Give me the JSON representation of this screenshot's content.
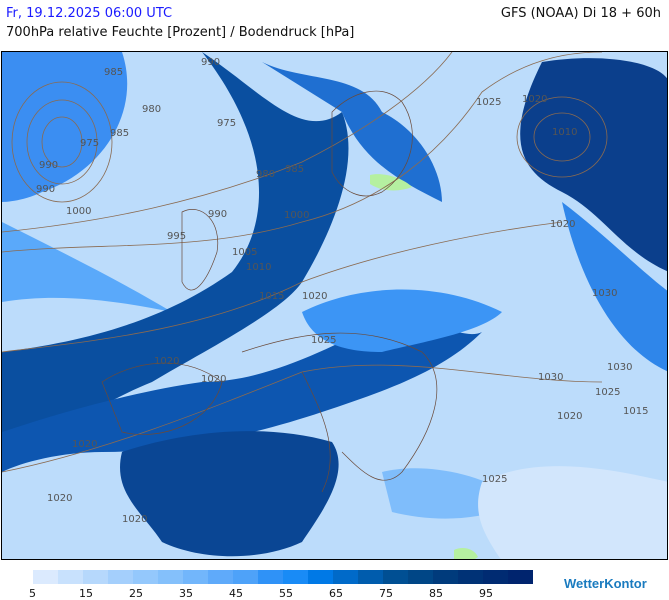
{
  "header": {
    "date": "Fr, 19.12.2025 06:00 UTC",
    "model": "GFS (NOAA) Di 18 + 60h",
    "parameter": "700hPa relative Feuchte [Prozent] / Bodendruck [hPa]"
  },
  "legend": {
    "colors": [
      "#dbeafe",
      "#c8e1fd",
      "#b6d8fc",
      "#a4cffc",
      "#94c8fc",
      "#84c0fb",
      "#72b6fb",
      "#5faafa",
      "#4ea2f9",
      "#2f92f7",
      "#198bf6",
      "#0079e6",
      "#006ac9",
      "#005cad",
      "#004f93",
      "#004686",
      "#003b7c",
      "#003276",
      "#002b72",
      "#00246e"
    ],
    "tick_labels": [
      "5",
      "15",
      "25",
      "35",
      "45",
      "55",
      "65",
      "75",
      "85",
      "95"
    ]
  },
  "isobar_labels": [
    "985",
    "990",
    "980",
    "975",
    "985",
    "990",
    "1000",
    "975",
    "985",
    "990",
    "980",
    "990",
    "1000",
    "995",
    "1005",
    "1010",
    "1015",
    "1020",
    "1025",
    "1020",
    "1010",
    "1020",
    "1025",
    "1020",
    "1030",
    "1030",
    "1030",
    "1025",
    "1020",
    "1015",
    "1020",
    "1020",
    "1020",
    "1020",
    "1025"
  ],
  "brand": {
    "logo_text": "WetterKontor"
  }
}
